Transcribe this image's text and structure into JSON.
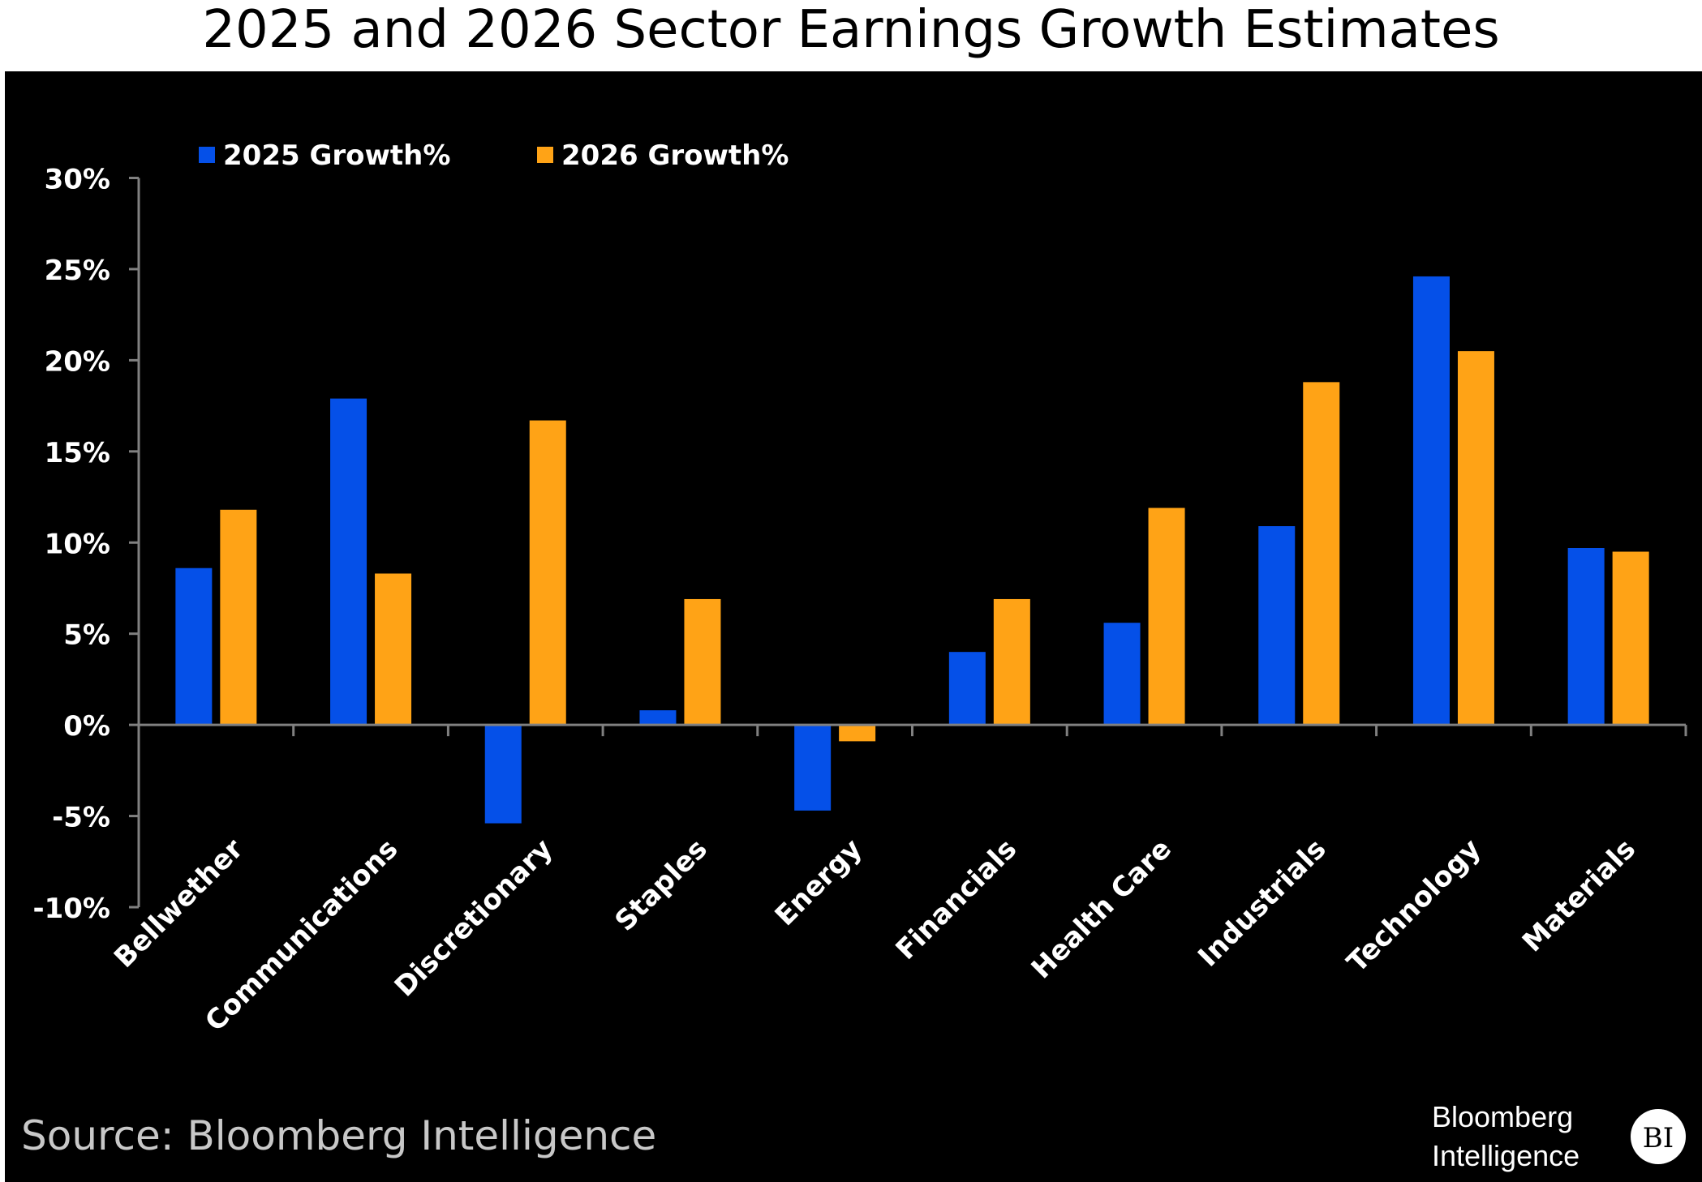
{
  "chart_data": {
    "type": "bar",
    "title": "2025 and 2026 Sector Earnings Growth Estimates",
    "categories": [
      "Bellwether",
      "Communications",
      "Discretionary",
      "Staples",
      "Energy",
      "Financials",
      "Health Care",
      "Industrials",
      "Technology",
      "Materials"
    ],
    "series": [
      {
        "name": "2025 Growth%",
        "color": "#0550e8",
        "values": [
          8.6,
          17.9,
          -5.4,
          0.8,
          -4.7,
          4.0,
          5.6,
          10.9,
          24.6,
          9.7
        ]
      },
      {
        "name": "2026 Growth%",
        "color": "#ffa316",
        "values": [
          11.8,
          8.3,
          16.7,
          6.9,
          -0.9,
          6.9,
          11.9,
          18.8,
          20.5,
          9.5
        ]
      }
    ],
    "ylim": [
      -10,
      30
    ],
    "yticks": [
      30,
      25,
      20,
      15,
      10,
      5,
      0,
      -5,
      -10
    ],
    "ytick_labels": [
      "30%",
      "25%",
      "20%",
      "15%",
      "10%",
      "5%",
      "0%",
      "-5%",
      "-10%"
    ],
    "xlabel": "",
    "ylabel": "",
    "grid": false,
    "legend": "top-left",
    "background": "#000000"
  },
  "source": "Source: Bloomberg Intelligence",
  "logo": {
    "line1": "Bloomberg",
    "line2": "Intelligence",
    "badge": "BI"
  }
}
